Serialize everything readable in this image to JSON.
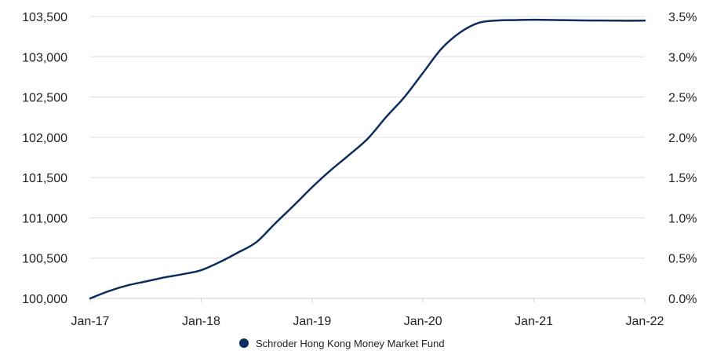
{
  "chart_data": {
    "type": "line",
    "title": "",
    "xlabel": "",
    "ylabel": "",
    "y_left_ticks": [
      "100,000",
      "100,500",
      "101,000",
      "101,500",
      "102,000",
      "102,500",
      "103,000",
      "103,500"
    ],
    "y_left_values": [
      100000,
      100500,
      101000,
      101500,
      102000,
      102500,
      103000,
      103500
    ],
    "y_right_ticks": [
      "0.0%",
      "0.5%",
      "1.0%",
      "1.5%",
      "2.0%",
      "2.5%",
      "3.0%",
      "3.5%"
    ],
    "x_ticks": [
      "Jan-17",
      "Jan-18",
      "Jan-19",
      "Jan-20",
      "Jan-21",
      "Jan-22"
    ],
    "x_tick_years": [
      2017,
      2018,
      2019,
      2020,
      2021,
      2022
    ],
    "ylim": [
      100000,
      103500
    ],
    "y2lim": [
      0,
      3.5
    ],
    "xlim": [
      "2017-01",
      "2022-01"
    ],
    "grid": true,
    "legend_position": "bottom-center",
    "series": [
      {
        "name": "Schroder Hong Kong Money Market Fund",
        "color": "#0d2d5e",
        "x": [
          "2017-01",
          "2017-03",
          "2017-05",
          "2017-07",
          "2017-09",
          "2017-11",
          "2018-01",
          "2018-03",
          "2018-05",
          "2018-07",
          "2018-09",
          "2018-11",
          "2019-01",
          "2019-03",
          "2019-05",
          "2019-07",
          "2019-09",
          "2019-11",
          "2020-01",
          "2020-03",
          "2020-05",
          "2020-07",
          "2020-09",
          "2020-11",
          "2021-01",
          "2021-04",
          "2021-07",
          "2021-10",
          "2022-01"
        ],
        "values": [
          100000,
          100090,
          100160,
          100210,
          100260,
          100300,
          100350,
          100450,
          100570,
          100700,
          100930,
          101150,
          101380,
          101590,
          101780,
          101980,
          102250,
          102500,
          102800,
          103100,
          103300,
          103420,
          103450,
          103455,
          103460,
          103455,
          103450,
          103448,
          103448
        ]
      }
    ]
  }
}
